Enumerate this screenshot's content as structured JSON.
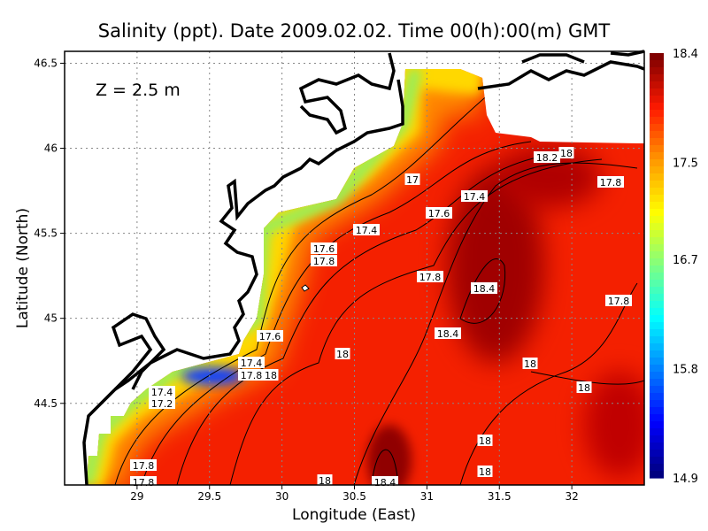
{
  "chart_data": {
    "type": "heatmap",
    "title": "Salinity (ppt). Date 2009.02.02. Time 00(h):00(m) GMT",
    "annotation": "Z = 2.5 m",
    "xlabel": "Longitude (East)",
    "ylabel": "Latitude (North)",
    "xlim": [
      28.5,
      32.5
    ],
    "ylim": [
      44.02,
      46.57
    ],
    "xticks": [
      "29",
      "29.5",
      "30",
      "30.5",
      "31",
      "31.5",
      "32"
    ],
    "yticks": [
      "44.5",
      "45",
      "45.5",
      "46",
      "46.5"
    ],
    "grid": true,
    "colorbar": {
      "ticks": [
        "18.4",
        "17.5",
        "16.7",
        "15.8",
        "14.9"
      ],
      "range": [
        14.9,
        18.4
      ],
      "colors": [
        "#800000",
        "#ff1a00",
        "#ff9a00",
        "#ffff00",
        "#80ff80",
        "#00ffff",
        "#0080ff",
        "#0000ff",
        "#000080"
      ]
    },
    "contour_labels": [
      "17",
      "17.4",
      "17.6",
      "17.4",
      "17.6",
      "17.8",
      "17.8",
      "18.4",
      "18.2",
      "18",
      "17.8",
      "17.8",
      "18.4",
      "17.6",
      "18",
      "17.4",
      "17.8",
      "18",
      "18",
      "18",
      "18",
      "18",
      "17.8",
      "17.8",
      "18",
      "18.4",
      "17.4",
      "17.2"
    ]
  }
}
